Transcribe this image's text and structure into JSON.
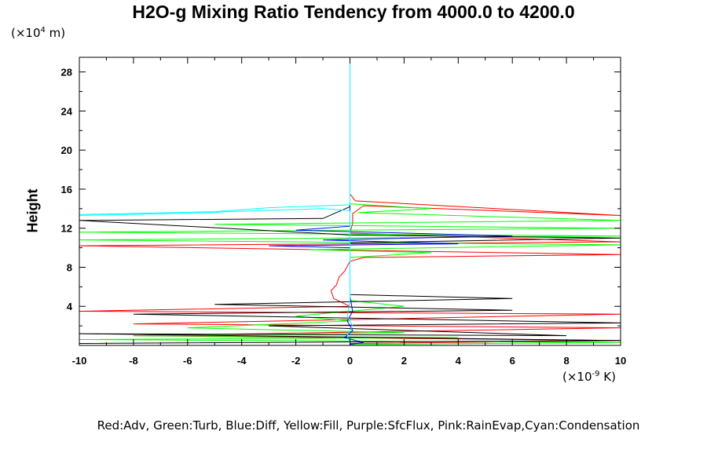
{
  "chart_data": {
    "type": "line",
    "title": "H2O-g Mixing Ratio Tendency from 4000.0 to 4200.0",
    "ylabel": "Height",
    "y_units_prefix": "(×10",
    "y_units_exp": "4",
    "y_units_suffix": " m)",
    "x_units_prefix": "(×10",
    "x_units_exp": "-9",
    "x_units_suffix": " K)",
    "legend_text": "Red:Adv, Green:Turb, Blue:Diff, Yellow:Fill, Purple:SfcFlux, Pink:RainEvap,Cyan:Condensation",
    "xlim": [
      -10,
      10
    ],
    "ylim": [
      0,
      29.5
    ],
    "x_ticks": [
      -10,
      -8,
      -6,
      -4,
      -2,
      0,
      2,
      4,
      6,
      8,
      10
    ],
    "x_tick_labels": [
      "-10",
      "-8",
      "-6",
      "-4",
      "-2",
      "0",
      "2",
      "4",
      "6",
      "8",
      "10"
    ],
    "y_ticks": [
      4,
      8,
      12,
      16,
      20,
      24,
      28
    ],
    "y_tick_labels": [
      "4",
      "8",
      "12",
      "16",
      "20",
      "24",
      "28"
    ],
    "grid": false,
    "series": [
      {
        "color": "#ff0000",
        "points": [
          [
            0,
            0.2
          ],
          [
            10,
            0.5
          ],
          [
            -8,
            1.0
          ],
          [
            10,
            1.8
          ],
          [
            -8,
            2.2
          ],
          [
            10,
            3.2
          ],
          [
            -10,
            3.5
          ],
          [
            0,
            4.0
          ],
          [
            -0.6,
            4.8
          ],
          [
            -0.7,
            5.6
          ],
          [
            -0.5,
            6.2
          ],
          [
            -0.4,
            7.0
          ],
          [
            -0.2,
            7.6
          ],
          [
            0,
            8.6
          ],
          [
            0.5,
            9.0
          ],
          [
            10,
            9.3
          ],
          [
            -10,
            10.2
          ],
          [
            10,
            10.6
          ],
          [
            0,
            11.5
          ],
          [
            0.1,
            12.5
          ],
          [
            0.1,
            13.5
          ],
          [
            0.5,
            14.3
          ],
          [
            10,
            13.3
          ],
          [
            0.2,
            14.8
          ],
          [
            0,
            15.5
          ],
          [
            0,
            29.5
          ]
        ]
      },
      {
        "color": "#00ff00",
        "points": [
          [
            0,
            0.1
          ],
          [
            10,
            0.3
          ],
          [
            -10,
            0.6
          ],
          [
            4,
            0.8
          ],
          [
            -8,
            1.0
          ],
          [
            2,
            1.3
          ],
          [
            -6,
            1.8
          ],
          [
            0,
            2.5
          ],
          [
            -2,
            3.0
          ],
          [
            0,
            3.5
          ],
          [
            2,
            4.0
          ],
          [
            0,
            4.6
          ],
          [
            0,
            9.0
          ],
          [
            3,
            9.5
          ],
          [
            -1.5,
            9.8
          ],
          [
            10,
            10.3
          ],
          [
            -10,
            10.8
          ],
          [
            10,
            11.2
          ],
          [
            -10,
            11.6
          ],
          [
            10,
            12.0
          ],
          [
            -5,
            12.4
          ],
          [
            10,
            12.8
          ],
          [
            0.3,
            13.6
          ],
          [
            3,
            14.0
          ],
          [
            0,
            14.5
          ],
          [
            0,
            29.5
          ]
        ]
      },
      {
        "color": "#0000ff",
        "points": [
          [
            0,
            0.1
          ],
          [
            0.5,
            0.3
          ],
          [
            -0.2,
            0.8
          ],
          [
            0.1,
            1.5
          ],
          [
            -0.1,
            2.5
          ],
          [
            0.1,
            3.5
          ],
          [
            0,
            5.0
          ],
          [
            0,
            10.0
          ],
          [
            -3,
            10.2
          ],
          [
            4,
            10.4
          ],
          [
            -1,
            10.8
          ],
          [
            6,
            11.2
          ],
          [
            -2,
            11.8
          ],
          [
            0,
            12.2
          ],
          [
            0,
            29.5
          ]
        ]
      },
      {
        "color": "#000000",
        "points": [
          [
            -10,
            0.2
          ],
          [
            10,
            0.5
          ],
          [
            -10,
            1.2
          ],
          [
            8,
            1.0
          ],
          [
            -3,
            2.0
          ],
          [
            10,
            2.3
          ],
          [
            -8,
            3.2
          ],
          [
            6,
            3.6
          ],
          [
            -5,
            4.2
          ],
          [
            6,
            4.8
          ],
          [
            0,
            5.2
          ],
          [
            0,
            10.5
          ],
          [
            10,
            11.0
          ],
          [
            0,
            11.3
          ],
          [
            -10,
            12.8
          ],
          [
            -1,
            13.0
          ],
          [
            0,
            14.2
          ],
          [
            0,
            29.5
          ]
        ]
      },
      {
        "color": "#00ffff",
        "points": [
          [
            0,
            0.2
          ],
          [
            -0.1,
            1.0
          ],
          [
            0.1,
            2.0
          ],
          [
            -0.1,
            3.0
          ],
          [
            0,
            4.5
          ],
          [
            0,
            13.8
          ],
          [
            -1,
            14.0
          ],
          [
            -4.5,
            13.7
          ],
          [
            -5,
            13.6
          ],
          [
            -10,
            13.3
          ],
          [
            -10,
            13.4
          ],
          [
            -5,
            13.7
          ],
          [
            -3,
            14.1
          ],
          [
            0,
            14.4
          ],
          [
            0,
            29.5
          ]
        ]
      }
    ]
  }
}
